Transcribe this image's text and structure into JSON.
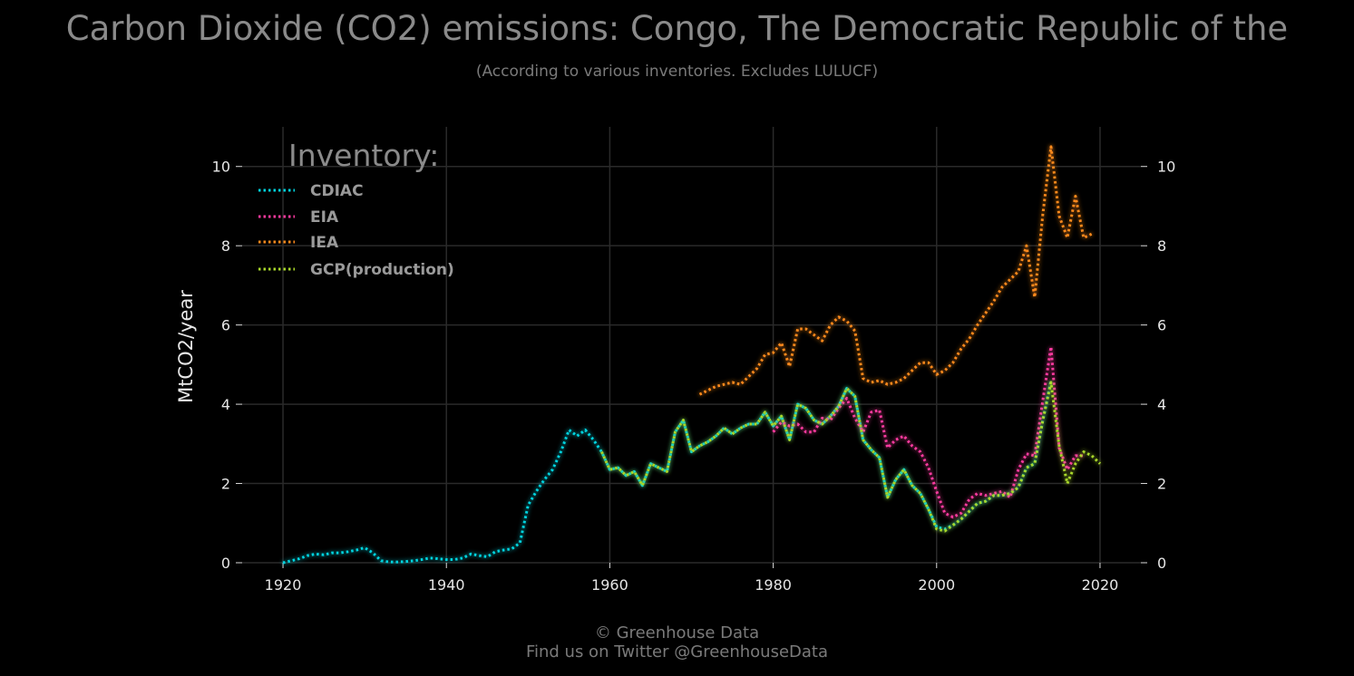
{
  "header": {
    "title": "Carbon Dioxide (CO2) emissions: Congo, The Democratic Republic of the",
    "subtitle": "(According to various inventories. Excludes LULUCF)"
  },
  "footer": {
    "line1": "© Greenhouse Data",
    "line2": "Find us on Twitter @GreenhouseData"
  },
  "chart_data": {
    "type": "line",
    "title": "Carbon Dioxide (CO2) emissions: Congo, The Democratic Republic of the",
    "subtitle": "(According to various inventories. Excludes LULUCF)",
    "xlabel": "",
    "ylabel": "MtCO2/year",
    "xlim": [
      1915,
      2025
    ],
    "ylim": [
      0,
      11
    ],
    "x_ticks": [
      1920,
      1940,
      1960,
      1980,
      2000,
      2020
    ],
    "y_ticks": [
      0,
      2,
      4,
      6,
      8,
      10
    ],
    "grid": true,
    "y_axis_right": true,
    "legend": {
      "title": "Inventory:",
      "placement": "top-left"
    },
    "series": [
      {
        "name": "CDIAC",
        "color": "#00d4e0",
        "x": [
          1920,
          1921,
          1922,
          1923,
          1924,
          1925,
          1926,
          1927,
          1928,
          1929,
          1930,
          1931,
          1932,
          1933,
          1934,
          1935,
          1936,
          1937,
          1938,
          1939,
          1940,
          1941,
          1942,
          1943,
          1944,
          1945,
          1946,
          1947,
          1948,
          1949,
          1950,
          1951,
          1952,
          1953,
          1954,
          1955,
          1956,
          1957,
          1958,
          1959,
          1960,
          1961,
          1962,
          1963,
          1964,
          1965,
          1966,
          1967,
          1968,
          1969,
          1970,
          1971,
          1972,
          1973,
          1974,
          1975,
          1976,
          1977,
          1978,
          1979,
          1980,
          1981,
          1982,
          1983,
          1984,
          1985,
          1986,
          1987,
          1988,
          1989,
          1990,
          1991,
          1992,
          1993,
          1994,
          1995,
          1996,
          1997,
          1998,
          1999,
          2000,
          2001,
          2002,
          2003,
          2004,
          2005,
          2006,
          2007,
          2008,
          2009,
          2010,
          2011,
          2012,
          2013,
          2014
        ],
        "values": [
          0.0,
          0.05,
          0.1,
          0.18,
          0.22,
          0.2,
          0.25,
          0.25,
          0.28,
          0.32,
          0.38,
          0.25,
          0.05,
          0.02,
          0.02,
          0.03,
          0.05,
          0.08,
          0.12,
          0.1,
          0.08,
          0.08,
          0.12,
          0.22,
          0.18,
          0.15,
          0.28,
          0.32,
          0.35,
          0.5,
          1.45,
          1.8,
          2.1,
          2.35,
          2.8,
          3.35,
          3.2,
          3.35,
          3.1,
          2.8,
          2.35,
          2.4,
          2.2,
          2.3,
          1.95,
          2.5,
          2.4,
          2.3,
          3.3,
          3.6,
          2.8,
          2.95,
          3.05,
          3.2,
          3.4,
          3.25,
          3.4,
          3.5,
          3.5,
          3.8,
          3.45,
          3.7,
          3.1,
          4.0,
          3.9,
          3.6,
          3.5,
          3.7,
          3.95,
          4.4,
          4.2,
          3.1,
          2.85,
          2.65,
          1.65,
          2.1,
          2.35,
          1.95,
          1.75,
          1.35,
          0.9,
          0.85,
          0.95,
          1.1,
          1.3,
          1.5,
          1.55,
          1.7,
          1.7,
          1.75,
          1.9,
          2.4,
          2.5,
          3.6,
          4.6
        ]
      },
      {
        "name": "EIA",
        "color": "#ff3aa0",
        "x": [
          1980,
          1981,
          1982,
          1983,
          1984,
          1985,
          1986,
          1987,
          1988,
          1989,
          1990,
          1991,
          1992,
          1993,
          1994,
          1995,
          1996,
          1997,
          1998,
          1999,
          2000,
          2001,
          2002,
          2003,
          2004,
          2005,
          2006,
          2007,
          2008,
          2009,
          2010,
          2011,
          2012,
          2013,
          2014,
          2015,
          2016,
          2017,
          2018
        ],
        "values": [
          3.3,
          3.55,
          3.45,
          3.5,
          3.3,
          3.3,
          3.65,
          3.6,
          3.9,
          4.15,
          3.65,
          3.3,
          3.8,
          3.85,
          2.9,
          3.1,
          3.2,
          2.95,
          2.8,
          2.4,
          1.8,
          1.25,
          1.15,
          1.25,
          1.6,
          1.75,
          1.7,
          1.75,
          1.8,
          1.65,
          2.35,
          2.75,
          2.7,
          4.1,
          5.45,
          2.9,
          2.35,
          2.7,
          2.7
        ]
      },
      {
        "name": "IEA",
        "color": "#ff8a1c",
        "x": [
          1971,
          1972,
          1973,
          1974,
          1975,
          1976,
          1977,
          1978,
          1979,
          1980,
          1981,
          1982,
          1983,
          1984,
          1985,
          1986,
          1987,
          1988,
          1989,
          1990,
          1991,
          1992,
          1993,
          1994,
          1995,
          1996,
          1997,
          1998,
          1999,
          2000,
          2001,
          2002,
          2003,
          2004,
          2005,
          2006,
          2007,
          2008,
          2009,
          2010,
          2011,
          2012,
          2013,
          2014,
          2015,
          2016,
          2017,
          2018,
          2019
        ],
        "values": [
          4.25,
          4.35,
          4.45,
          4.5,
          4.55,
          4.5,
          4.7,
          4.9,
          5.25,
          5.3,
          5.55,
          4.95,
          5.9,
          5.9,
          5.75,
          5.6,
          6.0,
          6.2,
          6.1,
          5.85,
          4.65,
          4.55,
          4.6,
          4.5,
          4.55,
          4.65,
          4.85,
          5.05,
          5.05,
          4.75,
          4.85,
          5.05,
          5.4,
          5.65,
          6.0,
          6.3,
          6.6,
          6.95,
          7.15,
          7.35,
          8.0,
          6.7,
          8.8,
          10.5,
          8.75,
          8.2,
          9.25,
          8.2,
          8.3
        ]
      },
      {
        "name": "GCP(production)",
        "color": "#a9d82a",
        "x": [
          1959,
          1960,
          1961,
          1962,
          1963,
          1964,
          1965,
          1966,
          1967,
          1968,
          1969,
          1970,
          1971,
          1972,
          1973,
          1974,
          1975,
          1976,
          1977,
          1978,
          1979,
          1980,
          1981,
          1982,
          1983,
          1984,
          1985,
          1986,
          1987,
          1988,
          1989,
          1990,
          1991,
          1992,
          1993,
          1994,
          1995,
          1996,
          1997,
          1998,
          1999,
          2000,
          2001,
          2002,
          2003,
          2004,
          2005,
          2006,
          2007,
          2008,
          2009,
          2010,
          2011,
          2012,
          2013,
          2014,
          2015,
          2016,
          2017,
          2018,
          2019,
          2020
        ],
        "values": [
          2.8,
          2.35,
          2.4,
          2.2,
          2.3,
          1.95,
          2.5,
          2.4,
          2.3,
          3.3,
          3.6,
          2.8,
          2.95,
          3.05,
          3.2,
          3.4,
          3.25,
          3.4,
          3.5,
          3.5,
          3.8,
          3.45,
          3.7,
          3.1,
          4.0,
          3.9,
          3.6,
          3.5,
          3.7,
          3.95,
          4.4,
          4.2,
          3.1,
          2.85,
          2.65,
          1.65,
          2.1,
          2.35,
          1.95,
          1.75,
          1.35,
          0.85,
          0.8,
          0.95,
          1.1,
          1.3,
          1.5,
          1.55,
          1.7,
          1.7,
          1.75,
          1.9,
          2.4,
          2.5,
          3.6,
          4.55,
          2.95,
          2.0,
          2.5,
          2.8,
          2.7,
          2.5
        ]
      }
    ]
  }
}
